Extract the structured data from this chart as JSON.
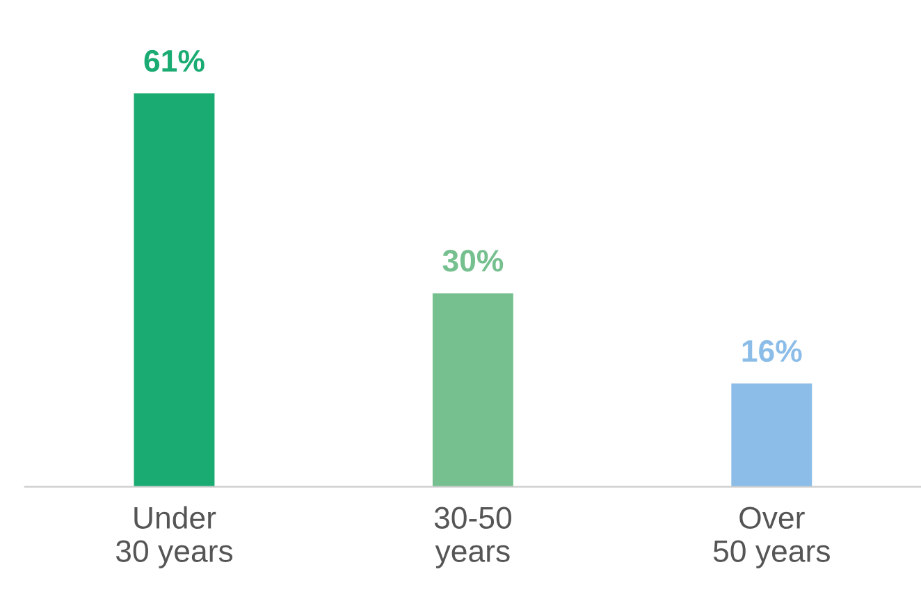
{
  "chart_data": {
    "type": "bar",
    "categories": [
      "Under\n30 years",
      "30-50\nyears",
      "Over\n50 years"
    ],
    "values": [
      61,
      30,
      16
    ],
    "colors": [
      "#1aab72",
      "#76c08f",
      "#8bbde8"
    ],
    "value_labels": [
      "61%",
      "30%",
      "16%"
    ],
    "grid": false,
    "legend": false
  }
}
